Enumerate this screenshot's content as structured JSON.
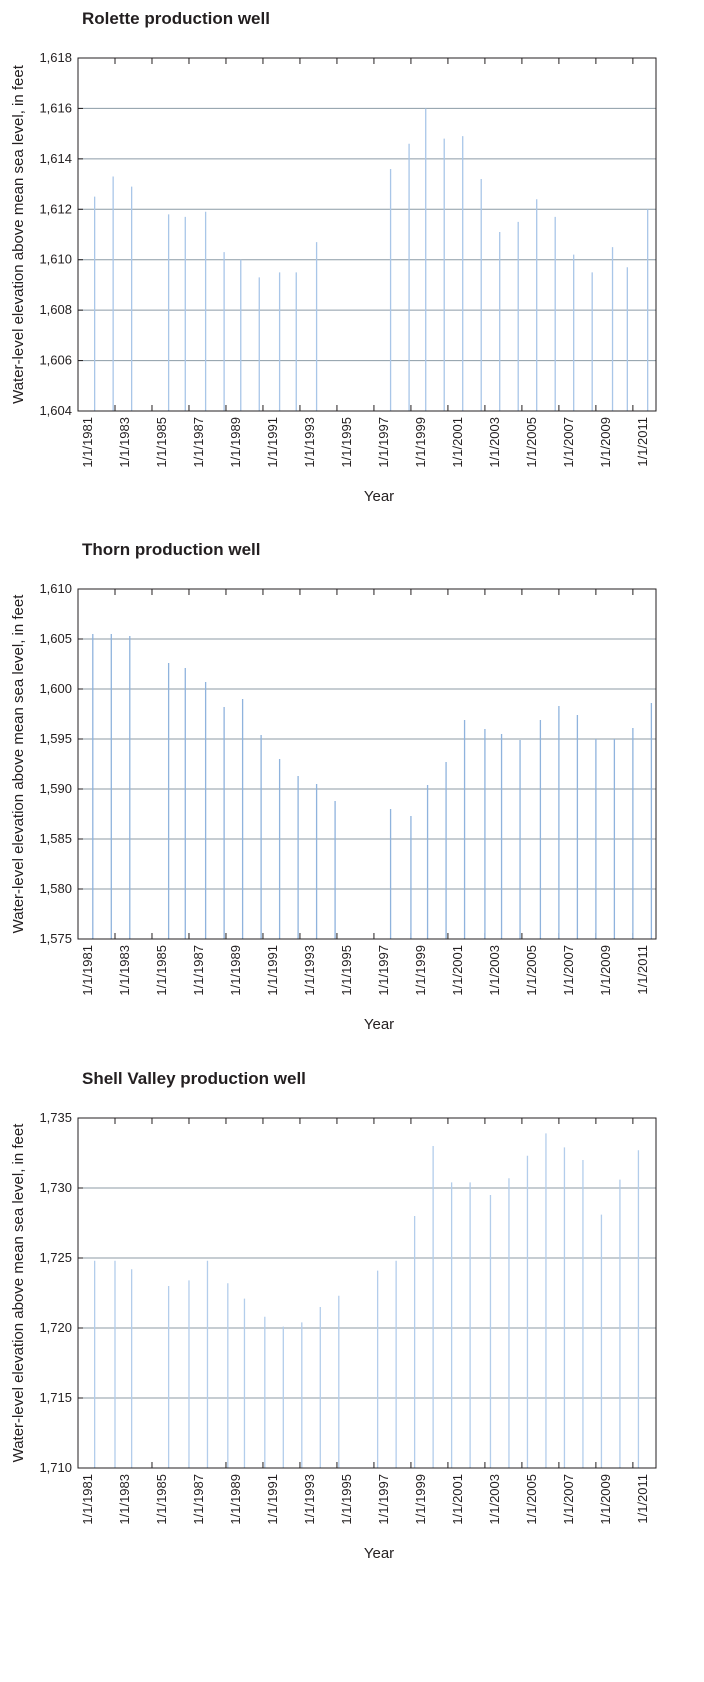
{
  "chart_data": [
    {
      "type": "bar",
      "title": "Rolette production well",
      "xlabel": "Year",
      "ylabel": "Water-level elevation above mean sea level, in feet",
      "color": "#a9c6e8",
      "grid": true,
      "xlim": [
        1981,
        2012.25
      ],
      "ylim": [
        1604,
        1618
      ],
      "xticks": [
        {
          "value": 1981,
          "label": "1/1/1981"
        },
        {
          "value": 1983,
          "label": "1/1/1983"
        },
        {
          "value": 1985,
          "label": "1/1/1985"
        },
        {
          "value": 1987,
          "label": "1/1/1987"
        },
        {
          "value": 1989,
          "label": "1/1/1989"
        },
        {
          "value": 1991,
          "label": "1/1/1991"
        },
        {
          "value": 1993,
          "label": "1/1/1993"
        },
        {
          "value": 1995,
          "label": "1/1/1995"
        },
        {
          "value": 1997,
          "label": "1/1/1997"
        },
        {
          "value": 1999,
          "label": "1/1/1999"
        },
        {
          "value": 2001,
          "label": "1/1/2001"
        },
        {
          "value": 2003,
          "label": "1/1/2003"
        },
        {
          "value": 2005,
          "label": "1/1/2005"
        },
        {
          "value": 2007,
          "label": "1/1/2007"
        },
        {
          "value": 2009,
          "label": "1/1/2009"
        },
        {
          "value": 2011,
          "label": "1/1/2011"
        }
      ],
      "yticks": [
        {
          "value": 1604,
          "label": "1,604"
        },
        {
          "value": 1606,
          "label": "1,606"
        },
        {
          "value": 1608,
          "label": "1,608"
        },
        {
          "value": 1610,
          "label": "1,610"
        },
        {
          "value": 1612,
          "label": "1,612"
        },
        {
          "value": 1614,
          "label": "1,614"
        },
        {
          "value": 1616,
          "label": "1,616"
        },
        {
          "value": 1618,
          "label": "1,618"
        }
      ],
      "x": [
        1981.9,
        1982.9,
        1983.9,
        1985.9,
        1986.8,
        1987.9,
        1988.9,
        1989.8,
        1990.8,
        1991.9,
        1992.8,
        1993.9,
        1997.9,
        1998.9,
        1999.8,
        2000.8,
        2001.8,
        2002.8,
        2003.8,
        2004.8,
        2005.8,
        2006.8,
        2007.8,
        2008.8,
        2009.9,
        2010.7,
        2011.8
      ],
      "values": [
        1612.5,
        1613.3,
        1612.9,
        1611.8,
        1611.7,
        1611.9,
        1610.3,
        1610.0,
        1609.3,
        1609.5,
        1609.5,
        1610.7,
        1613.6,
        1614.6,
        1616.0,
        1614.8,
        1614.9,
        1613.2,
        1611.1,
        1611.5,
        1612.4,
        1611.7,
        1610.2,
        1609.5,
        1610.5,
        1609.7,
        1612.0
      ]
    },
    {
      "type": "bar",
      "title": "Thorn production well",
      "xlabel": "Year",
      "ylabel": "Water-level elevation above mean sea level, in feet",
      "color": "#8fb3dd",
      "grid": true,
      "xlim": [
        1981,
        2012.25
      ],
      "ylim": [
        1575,
        1610
      ],
      "xticks": [
        {
          "value": 1981,
          "label": "1/1/1981"
        },
        {
          "value": 1983,
          "label": "1/1/1983"
        },
        {
          "value": 1985,
          "label": "1/1/1985"
        },
        {
          "value": 1987,
          "label": "1/1/1987"
        },
        {
          "value": 1989,
          "label": "1/1/1989"
        },
        {
          "value": 1991,
          "label": "1/1/1991"
        },
        {
          "value": 1993,
          "label": "1/1/1993"
        },
        {
          "value": 1995,
          "label": "1/1/1995"
        },
        {
          "value": 1997,
          "label": "1/1/1997"
        },
        {
          "value": 1999,
          "label": "1/1/1999"
        },
        {
          "value": 2001,
          "label": "1/1/2001"
        },
        {
          "value": 2003,
          "label": "1/1/2003"
        },
        {
          "value": 2005,
          "label": "1/1/2005"
        },
        {
          "value": 2007,
          "label": "1/1/2007"
        },
        {
          "value": 2009,
          "label": "1/1/2009"
        },
        {
          "value": 2011,
          "label": "1/1/2011"
        }
      ],
      "yticks": [
        {
          "value": 1575,
          "label": "1,575"
        },
        {
          "value": 1580,
          "label": "1,580"
        },
        {
          "value": 1585,
          "label": "1,585"
        },
        {
          "value": 1590,
          "label": "1,590"
        },
        {
          "value": 1595,
          "label": "1,595"
        },
        {
          "value": 1600,
          "label": "1,600"
        },
        {
          "value": 1605,
          "label": "1,605"
        },
        {
          "value": 1610,
          "label": "1,610"
        }
      ],
      "x": [
        1981.8,
        1982.8,
        1983.8,
        1985.9,
        1986.8,
        1987.9,
        1988.9,
        1989.9,
        1990.9,
        1991.9,
        1992.9,
        1993.9,
        1994.9,
        1997.9,
        1999.0,
        1999.9,
        2000.9,
        2001.9,
        2003.0,
        2003.9,
        2004.9,
        2006.0,
        2007.0,
        2008.0,
        2009.0,
        2010.0,
        2011.0,
        2012.0
      ],
      "values": [
        1605.5,
        1605.5,
        1605.3,
        1602.6,
        1602.1,
        1600.7,
        1598.2,
        1599.0,
        1595.4,
        1593.0,
        1591.3,
        1590.5,
        1588.8,
        1588.0,
        1587.3,
        1590.4,
        1592.7,
        1596.9,
        1596.0,
        1595.5,
        1594.9,
        1596.9,
        1598.3,
        1597.4,
        1595.0,
        1595.0,
        1596.1,
        1598.6
      ]
    },
    {
      "type": "bar",
      "title": "Shell Valley production well",
      "xlabel": "Year",
      "ylabel": "Water-level elevation above mean sea level, in feet",
      "color": "#b3cdeb",
      "grid": true,
      "xlim": [
        1981,
        2012.25
      ],
      "ylim": [
        1710,
        1735
      ],
      "xticks": [
        {
          "value": 1981,
          "label": "1/1/1981"
        },
        {
          "value": 1983,
          "label": "1/1/1983"
        },
        {
          "value": 1985,
          "label": "1/1/1985"
        },
        {
          "value": 1987,
          "label": "1/1/1987"
        },
        {
          "value": 1989,
          "label": "1/1/1989"
        },
        {
          "value": 1991,
          "label": "1/1/1991"
        },
        {
          "value": 1993,
          "label": "1/1/1993"
        },
        {
          "value": 1995,
          "label": "1/1/1995"
        },
        {
          "value": 1997,
          "label": "1/1/1997"
        },
        {
          "value": 1999,
          "label": "1/1/1999"
        },
        {
          "value": 2001,
          "label": "1/1/2001"
        },
        {
          "value": 2003,
          "label": "1/1/2003"
        },
        {
          "value": 2005,
          "label": "1/1/2005"
        },
        {
          "value": 2007,
          "label": "1/1/2007"
        },
        {
          "value": 2009,
          "label": "1/1/2009"
        },
        {
          "value": 2011,
          "label": "1/1/2011"
        }
      ],
      "yticks": [
        {
          "value": 1710,
          "label": "1,710"
        },
        {
          "value": 1715,
          "label": "1,715"
        },
        {
          "value": 1720,
          "label": "1,720"
        },
        {
          "value": 1725,
          "label": "1,725"
        },
        {
          "value": 1730,
          "label": "1,730"
        },
        {
          "value": 1735,
          "label": "1,735"
        }
      ],
      "x": [
        1981.9,
        1983.0,
        1983.9,
        1985.9,
        1987.0,
        1988.0,
        1989.1,
        1990.0,
        1991.1,
        1992.1,
        1993.1,
        1994.1,
        1995.1,
        1997.2,
        1998.2,
        1999.2,
        2000.2,
        2001.2,
        2002.2,
        2003.3,
        2004.3,
        2005.3,
        2006.3,
        2007.3,
        2008.3,
        2009.3,
        2010.3,
        2011.3
      ],
      "values": [
        1724.8,
        1724.8,
        1724.2,
        1723.0,
        1723.4,
        1724.8,
        1723.2,
        1722.1,
        1720.8,
        1720.1,
        1720.4,
        1721.5,
        1722.3,
        1724.1,
        1724.8,
        1728.0,
        1733.0,
        1730.4,
        1730.4,
        1729.5,
        1730.7,
        1732.3,
        1733.9,
        1732.9,
        1732.0,
        1728.1,
        1730.6,
        1732.7
      ]
    }
  ]
}
